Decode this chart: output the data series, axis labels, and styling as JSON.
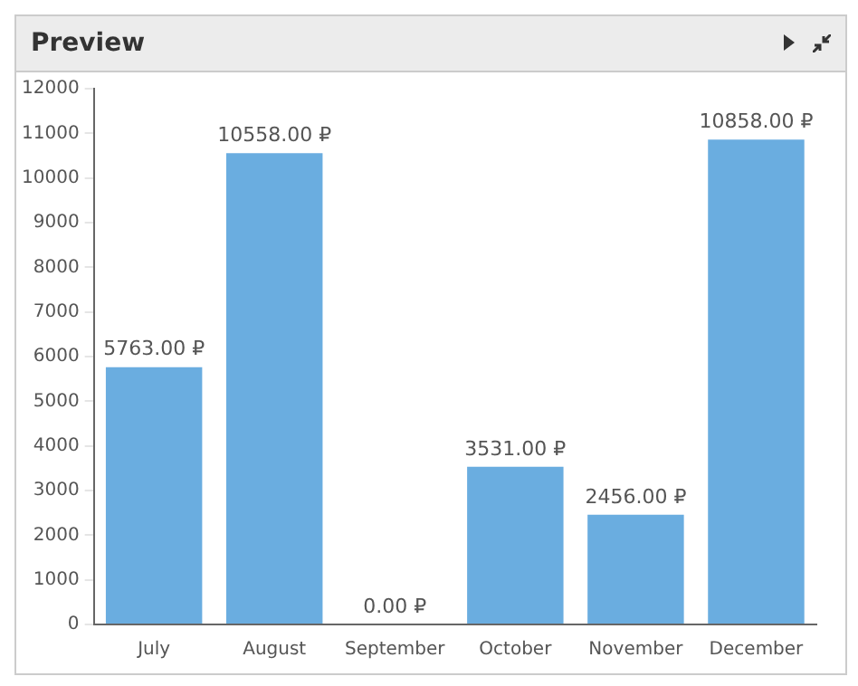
{
  "chart_data": {
    "type": "bar",
    "title": "Preview",
    "categories": [
      "July",
      "August",
      "September",
      "October",
      "November",
      "December"
    ],
    "values": [
      5763,
      10558,
      0,
      3531,
      2456,
      10858
    ],
    "value_labels": [
      "5763.00 ₽",
      "10558.00 ₽",
      "0.00 ₽",
      "3531.00 ₽",
      "2456.00 ₽",
      "10858.00 ₽"
    ],
    "color": "#6aade0",
    "ylim": [
      0,
      12000
    ],
    "yticks": [
      0,
      1000,
      2000,
      3000,
      4000,
      5000,
      6000,
      7000,
      8000,
      9000,
      10000,
      11000,
      12000
    ],
    "grid": false,
    "legend": false
  }
}
